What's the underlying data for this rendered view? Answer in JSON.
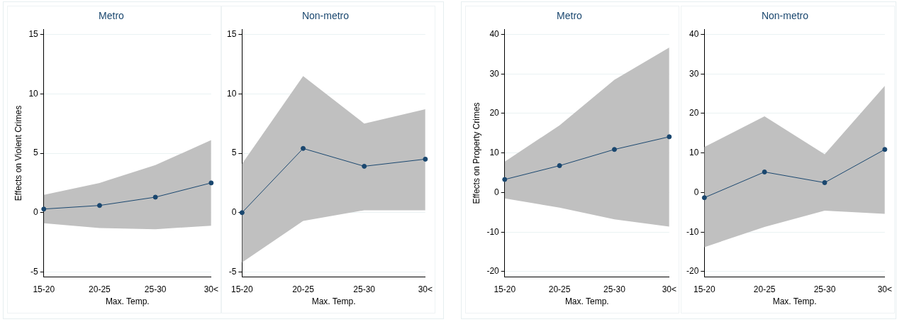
{
  "chart_data": [
    {
      "type": "line",
      "title": "Metro",
      "xlabel": "Max. Temp.",
      "ylabel": "Effects on Violent Crimes",
      "categories": [
        "15-20",
        "20-25",
        "25-30",
        "30<"
      ],
      "series": [
        {
          "color": "#1a476f",
          "values": [
            0.3,
            0.6,
            1.3,
            2.5
          ],
          "lower": [
            -0.9,
            -1.3,
            -1.4,
            -1.1
          ],
          "upper": [
            1.5,
            2.5,
            4.0,
            6.1
          ]
        }
      ],
      "ylim": [
        -5.4,
        15.4
      ],
      "yticks": [
        -5,
        0,
        5,
        10,
        15
      ],
      "grid": "y",
      "marker": "circle",
      "line_style": "solid",
      "legend": false
    },
    {
      "type": "line",
      "title": "Non-metro",
      "xlabel": "Max. Temp.",
      "categories": [
        "15-20",
        "20-25",
        "25-30",
        "30<"
      ],
      "series": [
        {
          "color": "#1a476f",
          "values": [
            0,
            5.4,
            3.9,
            4.5
          ],
          "lower": [
            -4.2,
            -0.7,
            0.2,
            0.2
          ],
          "upper": [
            4.1,
            11.5,
            7.5,
            8.7
          ]
        }
      ],
      "ylim": [
        -5.4,
        15.4
      ],
      "yticks": [
        -5,
        0,
        5,
        10,
        15
      ],
      "grid": "y",
      "marker": "circle",
      "line_style": "solid",
      "legend": false
    },
    {
      "type": "line",
      "title": "Metro",
      "xlabel": "Max. Temp.",
      "ylabel": "Effects on Property Crimes",
      "categories": [
        "15-20",
        "20-25",
        "25-30",
        "30<"
      ],
      "series": [
        {
          "color": "#1a476f",
          "values": [
            3.3,
            6.8,
            10.9,
            14.1
          ],
          "lower": [
            -1.5,
            -3.8,
            -6.8,
            -8.6
          ],
          "upper": [
            7.8,
            17.0,
            28.5,
            36.7
          ]
        }
      ],
      "ylim": [
        -21.3,
        41.2
      ],
      "yticks": [
        -20,
        -10,
        0,
        10,
        20,
        30,
        40
      ],
      "grid": "y",
      "marker": "circle",
      "line_style": "solid",
      "legend": false
    },
    {
      "type": "line",
      "title": "Non-metro",
      "xlabel": "Max. Temp.",
      "categories": [
        "15-20",
        "20-25",
        "25-30",
        "30<"
      ],
      "series": [
        {
          "color": "#1a476f",
          "values": [
            -1.3,
            5.2,
            2.5,
            10.9
          ],
          "lower": [
            -13.8,
            -8.7,
            -4.6,
            -5.4
          ],
          "upper": [
            11.5,
            19.3,
            9.7,
            27.0
          ]
        }
      ],
      "ylim": [
        -21.3,
        41.2
      ],
      "yticks": [
        -20,
        -10,
        0,
        10,
        20,
        30,
        40
      ],
      "grid": "y",
      "marker": "circle",
      "line_style": "solid",
      "legend": false
    }
  ]
}
